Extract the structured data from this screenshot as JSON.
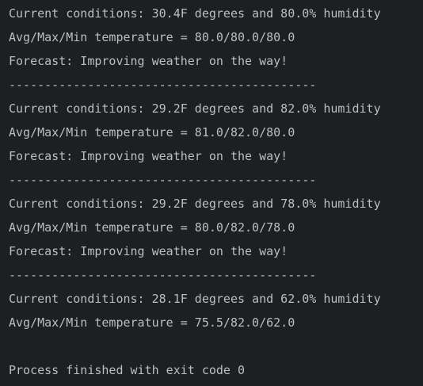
{
  "console": {
    "lines": [
      "Current conditions: 30.4F degrees and 80.0% humidity",
      "Avg/Max/Min temperature = 80.0/80.0/80.0",
      "Forecast: Improving weather on the way!",
      "-------------------------------------------",
      "Current conditions: 29.2F degrees and 82.0% humidity",
      "Avg/Max/Min temperature = 81.0/82.0/80.0",
      "Forecast: Improving weather on the way!",
      "-------------------------------------------",
      "Current conditions: 29.2F degrees and 78.0% humidity",
      "Avg/Max/Min temperature = 80.0/82.0/78.0",
      "Forecast: Improving weather on the way!",
      "-------------------------------------------",
      "Current conditions: 28.1F degrees and 62.0% humidity",
      "Avg/Max/Min temperature = 75.5/82.0/62.0",
      "",
      "Process finished with exit code 0"
    ]
  },
  "colors": {
    "background": "#1e1f22",
    "text": "#bcbec4"
  }
}
